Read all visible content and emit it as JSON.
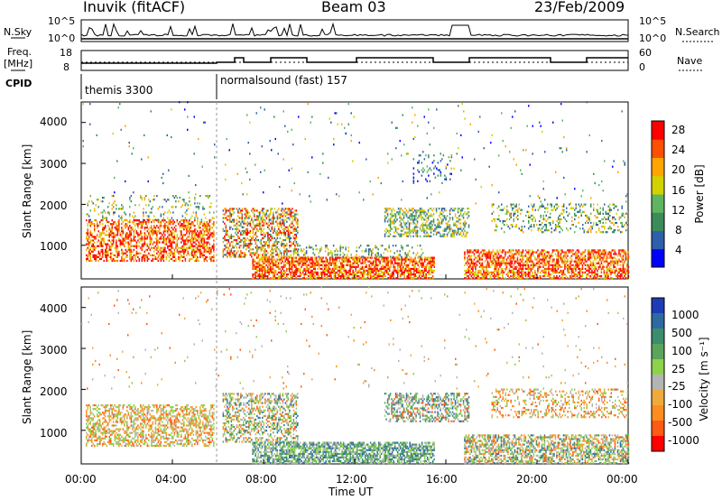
{
  "header": {
    "station": "Inuvik (fitACF)",
    "beam": "Beam 03",
    "date": "23/Feb/2009"
  },
  "panels": {
    "nsky_label": "N.Sky",
    "nsearch_label": "N.Search",
    "freq_label_1": "Freq.",
    "freq_label_2": "[MHz]",
    "nave_label": "Nave",
    "cpid_label": "CPID",
    "nsky_ticks": [
      "10^5",
      "10^0"
    ],
    "nsearch_ticks": [
      "10^5",
      "10^0"
    ],
    "freq_ticks": [
      "18",
      "8"
    ],
    "nave_ticks": [
      "60",
      "0"
    ],
    "cpid_1": "themis 3300",
    "cpid_2": "normalsound (fast) 157"
  },
  "chart_data": [
    {
      "type": "heatmap",
      "name": "Power",
      "ylabel": "Slant Range [km]",
      "ylim": [
        180,
        4500
      ],
      "y_ticks": [
        "4000",
        "3000",
        "2000",
        "1000"
      ],
      "colorbar_label": "Power [dB]",
      "colorbar_ticks": [
        "28",
        "24",
        "20",
        "16",
        "12",
        "8",
        "4"
      ],
      "colors": [
        "#0000ff",
        "#2e5faa",
        "#3c8c5a",
        "#5fb55f",
        "#d2d200",
        "#ffa500",
        "#ff5000",
        "#ff0000"
      ]
    },
    {
      "type": "heatmap",
      "name": "Velocity",
      "ylabel": "Slant Range [km]",
      "ylim": [
        180,
        4500
      ],
      "y_ticks": [
        "4000",
        "3000",
        "2000",
        "1000"
      ],
      "colorbar_label": "Velocity [m s⁻¹]",
      "colorbar_ticks": [
        "1000",
        "500",
        "100",
        "25",
        "-25",
        "-100",
        "-500",
        "-1000"
      ],
      "colors": [
        "#1e3cb4",
        "#2e6aa0",
        "#3c8c6e",
        "#5aa55a",
        "#8cd24b",
        "#b4b4b4",
        "#f0aa3c",
        "#ff8c1e",
        "#ff5a14",
        "#ff0000"
      ]
    }
  ],
  "x_axis": {
    "label": "Time UT",
    "ticks": [
      "00:00",
      "04:00",
      "08:00",
      "12:00",
      "16:00",
      "20:00",
      "00:00"
    ]
  }
}
